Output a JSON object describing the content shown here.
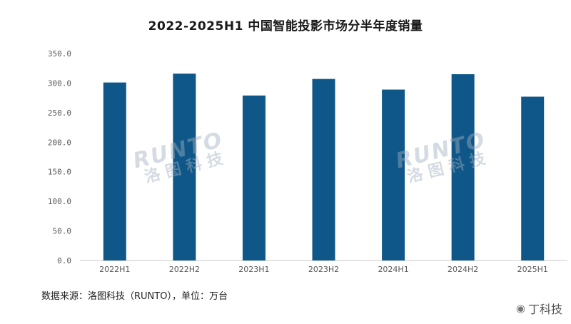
{
  "chart_data": {
    "type": "bar",
    "title": "2022-2025H1 中国智能投影市场分半年度销量",
    "categories": [
      "2022H1",
      "2022H2",
      "2023H1",
      "2023H2",
      "2024H1",
      "2024H2",
      "2025H1"
    ],
    "series": [
      {
        "values": [
          301,
          316,
          279,
          307,
          289,
          315,
          277
        ]
      }
    ],
    "yticks": [
      "0.0",
      "50.0",
      "100.0",
      "150.0",
      "200.0",
      "250.0",
      "300.0",
      "350.0"
    ],
    "ylim": [
      0,
      350
    ],
    "grid": false,
    "legend": "none",
    "bar_color": "#0f5788"
  },
  "source_note": "数据来源：洛图科技（RUNTO），单位：万台",
  "watermark": {
    "en": "RUNTO",
    "cn": "洛图科技"
  },
  "corner_mark": {
    "icon": "weibo-icon",
    "text": "丁科技"
  }
}
